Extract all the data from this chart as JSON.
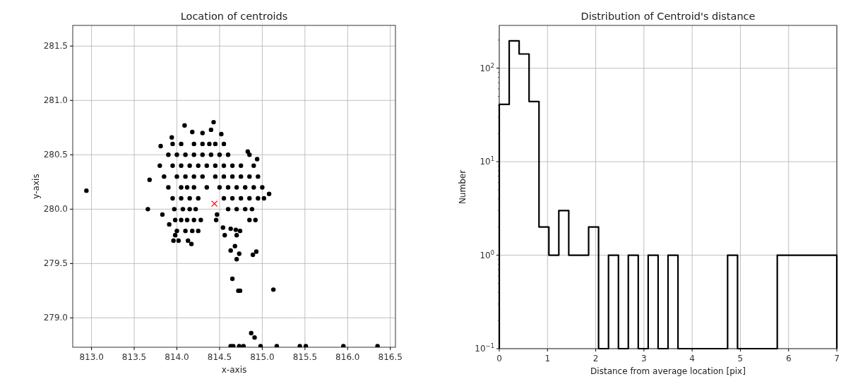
{
  "chart_data": [
    {
      "type": "scatter",
      "title": "Location of centroids",
      "xlabel": "x-axis",
      "ylabel": "y-axis",
      "xlim": [
        812.78,
        816.56
      ],
      "ylim": [
        278.73,
        281.69
      ],
      "xticks": [
        {
          "value": 813,
          "label": "813.0"
        },
        813.5,
        {
          "value": 814,
          "label": "814.0"
        },
        814.5,
        {
          "value": 815,
          "label": "815.0"
        },
        815.5,
        {
          "value": 816,
          "label": "816.0"
        },
        816.5
      ],
      "yticks": [
        {
          "value": 279,
          "label": "279.0"
        },
        279.5,
        {
          "value": 280,
          "label": "280.0"
        },
        280.5,
        {
          "value": 281,
          "label": "281.0"
        },
        281.5
      ],
      "grid": true,
      "series": [
        {
          "color": "#000000",
          "marker": "circle",
          "x": [
            812.94,
            813.68,
            813.66,
            813.83,
            813.91,
            813.81,
            815.08,
            814.92,
            814.93,
            814.89,
            814.63,
            814.68,
            814.73,
            814.7,
            814.65,
            814.72,
            814.74,
            815.13,
            814.87,
            814.91,
            814.63,
            814.66,
            814.73,
            814.78,
            814.98,
            815.17,
            815.44,
            815.51,
            815.95,
            816.35,
            814.54,
            814.56,
            814.63,
            814.69,
            814.74,
            814.7,
            814.46,
            814.47,
            814.43,
            814.09,
            814.4,
            814.52,
            814.18,
            814.3,
            813.94,
            814.83,
            814.94,
            813.96,
            814.02,
            814.13,
            814.17,
            813.98,
            813.95,
            814.05,
            814.2,
            814.3,
            814.38,
            814.45,
            814.55,
            813.9,
            814.0,
            814.1,
            814.2,
            814.3,
            814.4,
            814.5,
            814.6,
            814.85,
            813.8,
            813.95,
            814.05,
            814.15,
            814.25,
            814.35,
            814.45,
            814.55,
            814.65,
            814.75,
            814.9,
            813.85,
            814.0,
            814.1,
            814.2,
            814.3,
            814.45,
            814.55,
            814.65,
            814.75,
            814.85,
            814.95,
            813.9,
            814.05,
            814.12,
            814.2,
            814.35,
            814.5,
            814.6,
            814.7,
            814.8,
            814.9,
            815.0,
            813.95,
            814.05,
            814.15,
            814.25,
            814.55,
            814.65,
            814.75,
            814.85,
            814.95,
            815.02,
            813.97,
            814.07,
            814.15,
            814.22,
            814.6,
            814.7,
            814.8,
            814.88,
            813.98,
            814.05,
            814.12,
            814.2,
            814.28,
            814.85,
            814.0,
            814.1,
            814.18,
            814.25
          ],
          "values": [
            280.17,
            280.27,
            280.0,
            279.95,
            279.86,
            280.58,
            280.14,
            279.9,
            279.61,
            279.58,
            279.62,
            279.66,
            279.59,
            279.54,
            279.36,
            279.25,
            279.25,
            279.26,
            278.86,
            278.82,
            278.74,
            278.74,
            278.74,
            278.74,
            278.74,
            278.74,
            278.74,
            278.74,
            278.74,
            278.74,
            279.83,
            279.76,
            279.82,
            279.81,
            279.8,
            279.76,
            279.9,
            279.95,
            280.8,
            280.77,
            280.73,
            280.69,
            280.71,
            280.7,
            280.66,
            280.53,
            280.46,
            279.71,
            279.71,
            279.71,
            279.68,
            279.76,
            280.6,
            280.6,
            280.6,
            280.6,
            280.6,
            280.6,
            280.6,
            280.5,
            280.5,
            280.5,
            280.5,
            280.5,
            280.5,
            280.5,
            280.5,
            280.5,
            280.4,
            280.4,
            280.4,
            280.4,
            280.4,
            280.4,
            280.4,
            280.4,
            280.4,
            280.4,
            280.4,
            280.3,
            280.3,
            280.3,
            280.3,
            280.3,
            280.3,
            280.3,
            280.3,
            280.3,
            280.3,
            280.3,
            280.2,
            280.2,
            280.2,
            280.2,
            280.2,
            280.2,
            280.2,
            280.2,
            280.2,
            280.2,
            280.2,
            280.1,
            280.1,
            280.1,
            280.1,
            280.1,
            280.1,
            280.1,
            280.1,
            280.1,
            280.1,
            280.0,
            280.0,
            280.0,
            280.0,
            280.0,
            280.0,
            280.0,
            280.0,
            279.9,
            279.9,
            279.9,
            279.9,
            279.9,
            279.9,
            279.8,
            279.8,
            279.8,
            279.8
          ]
        },
        {
          "color": "#ff0000",
          "marker": "cross",
          "x": [
            814.44
          ],
          "values": [
            280.05
          ]
        }
      ]
    },
    {
      "type": "histogram",
      "title": "Distribution of Centroid's distance",
      "xlabel": "Distance from average location [pix]",
      "ylabel": "Number",
      "log": "y",
      "grid": true,
      "color": "#000000",
      "xlim": [
        0,
        7
      ],
      "xticks": [
        0,
        1,
        2,
        3,
        4,
        5,
        6,
        7
      ],
      "ylim": [
        0.1,
        287
      ],
      "yticks": [
        {
          "value": 0.1,
          "label": "10$^{−1}$"
        },
        {
          "value": 1,
          "label": "10$^{0}$"
        },
        {
          "value": 10,
          "label": "10$^{1}$"
        },
        {
          "value": 100,
          "label": "10$^{2}$"
        }
      ],
      "bins": [
        0,
        0.206,
        0.412,
        0.618,
        0.824,
        1.029,
        1.235,
        1.441,
        1.647,
        1.853,
        2.059,
        2.265,
        2.471,
        2.676,
        2.882,
        3.088,
        3.294,
        3.5,
        3.706,
        3.912,
        4.118,
        4.324,
        4.529,
        4.735,
        4.941,
        5.147,
        5.353,
        5.559,
        5.765,
        5.971,
        6.176,
        6.382,
        6.588,
        6.794,
        7
      ],
      "values": [
        41,
        196,
        142,
        44,
        2,
        1,
        3,
        1,
        1,
        2,
        null,
        1,
        null,
        1,
        null,
        1,
        null,
        1,
        null,
        null,
        null,
        null,
        null,
        1,
        null,
        null,
        null,
        null,
        1,
        1,
        1,
        1,
        1,
        1
      ]
    }
  ]
}
